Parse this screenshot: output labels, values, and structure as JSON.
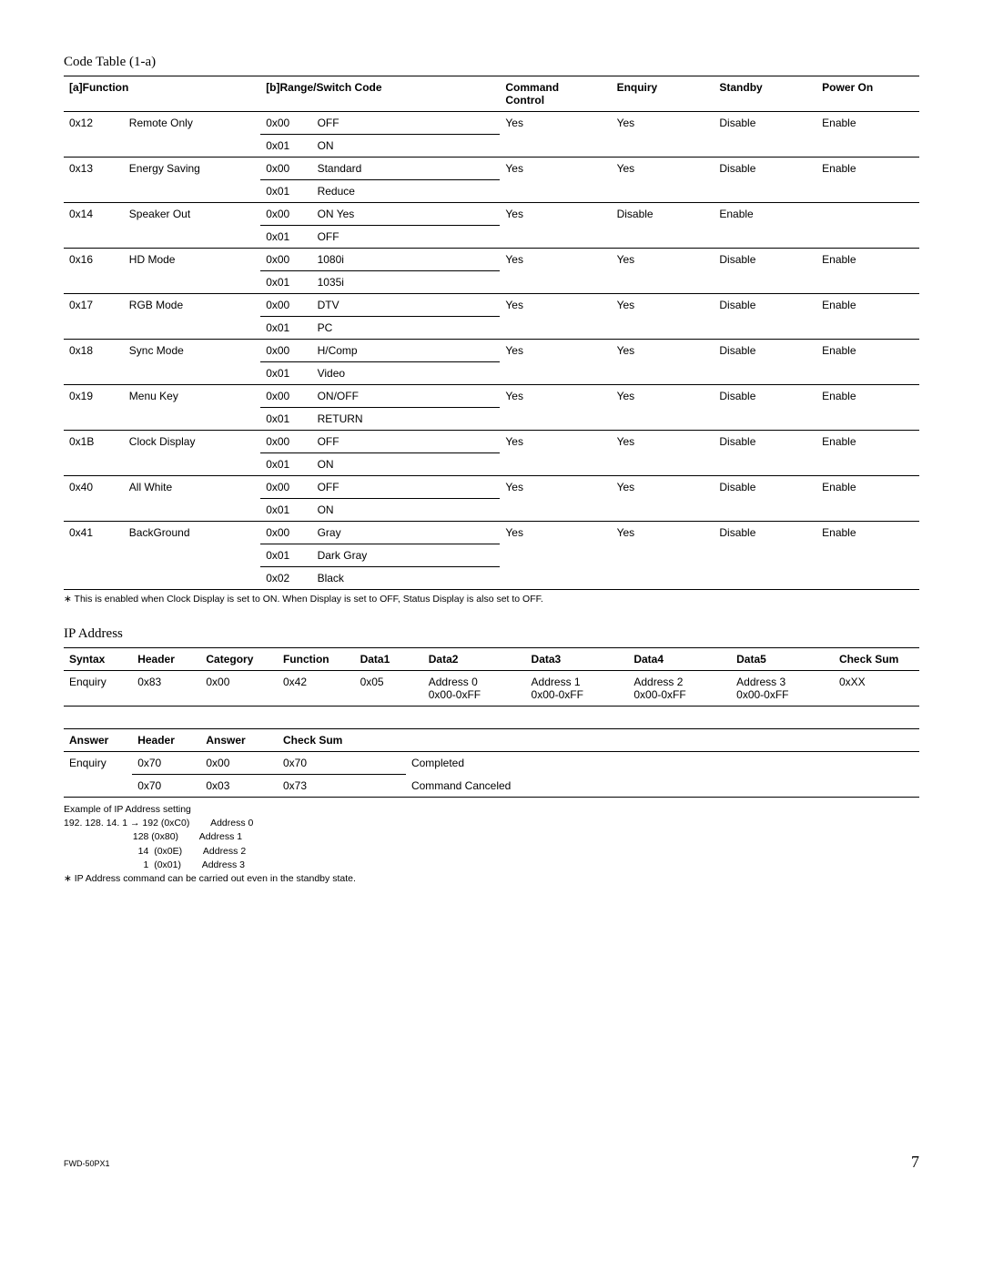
{
  "title1": "Code Table (1-a)",
  "table1": {
    "headers": {
      "a": "[a]Function",
      "b": "[b]Range/Switch Code",
      "cmd": "Command\nControl",
      "enq": "Enquiry",
      "stb": "Standby",
      "pwr": "Power On"
    },
    "groups": [
      {
        "code": "0x12",
        "name": "Remote Only",
        "rows": [
          [
            "0x00",
            "OFF"
          ],
          [
            "0x01",
            "ON"
          ]
        ],
        "cmd": "Yes",
        "enq": "Yes",
        "stb": "Disable",
        "pwr": "Enable"
      },
      {
        "code": "0x13",
        "name": "Energy Saving",
        "rows": [
          [
            "0x00",
            "Standard"
          ],
          [
            "0x01",
            "Reduce"
          ]
        ],
        "cmd": "Yes",
        "enq": "Yes",
        "stb": "Disable",
        "pwr": "Enable"
      },
      {
        "code": "0x14",
        "name": "Speaker Out",
        "rows": [
          [
            "0x00",
            "ON Yes"
          ],
          [
            "0x01",
            "OFF"
          ]
        ],
        "cmd": "Yes",
        "enq": "Disable",
        "stb": "Enable",
        "pwr": ""
      },
      {
        "code": "0x16",
        "name": "HD Mode",
        "rows": [
          [
            "0x00",
            "1080i"
          ],
          [
            "0x01",
            "1035i"
          ]
        ],
        "cmd": "Yes",
        "enq": "Yes",
        "stb": "Disable",
        "pwr": "Enable"
      },
      {
        "code": "0x17",
        "name": "RGB Mode",
        "rows": [
          [
            "0x00",
            "DTV"
          ],
          [
            "0x01",
            "PC"
          ]
        ],
        "cmd": "Yes",
        "enq": "Yes",
        "stb": "Disable",
        "pwr": "Enable"
      },
      {
        "code": "0x18",
        "name": "Sync Mode",
        "rows": [
          [
            "0x00",
            "H/Comp"
          ],
          [
            "0x01",
            "Video"
          ]
        ],
        "cmd": "Yes",
        "enq": "Yes",
        "stb": "Disable",
        "pwr": "Enable"
      },
      {
        "code": "0x19",
        "name": "Menu Key",
        "rows": [
          [
            "0x00",
            "ON/OFF"
          ],
          [
            "0x01",
            "RETURN"
          ]
        ],
        "cmd": "Yes",
        "enq": "Yes",
        "stb": "Disable",
        "pwr": "Enable"
      },
      {
        "code": "0x1B",
        "name": "Clock Display",
        "rows": [
          [
            "0x00",
            "OFF"
          ],
          [
            "0x01",
            "ON"
          ]
        ],
        "cmd": "Yes",
        "enq": "Yes",
        "stb": "Disable",
        "pwr": "Enable"
      },
      {
        "code": "0x40",
        "name": "All White",
        "rows": [
          [
            "0x00",
            "OFF"
          ],
          [
            "0x01",
            "ON"
          ]
        ],
        "cmd": "Yes",
        "enq": "Yes",
        "stb": "Disable",
        "pwr": "Enable"
      },
      {
        "code": "0x41",
        "name": "BackGround",
        "rows": [
          [
            "0x00",
            "Gray"
          ],
          [
            "0x01",
            "Dark Gray"
          ],
          [
            "0x02",
            "Black"
          ]
        ],
        "cmd": "Yes",
        "enq": "Yes",
        "stb": "Disable",
        "pwr": "Enable"
      }
    ]
  },
  "note1": "∗ This is enabled when Clock Display is set to ON. When Display is set to OFF, Status Display is also set to OFF.",
  "title2": "IP Address",
  "table2": {
    "headers": [
      "Syntax",
      "Header",
      "Category",
      "Function",
      "Data1",
      "Data2",
      "Data3",
      "Data4",
      "Data5",
      "Check Sum"
    ],
    "row": [
      "Enquiry",
      "0x83",
      "0x00",
      "0x42",
      "0x05",
      "Address 0\n0x00-0xFF",
      "Address 1\n0x00-0xFF",
      "Address 2\n0x00-0xFF",
      "Address 3\n0x00-0xFF",
      "0xXX"
    ]
  },
  "table3": {
    "headers": [
      "Answer",
      "Header",
      "Answer",
      "Check Sum",
      ""
    ],
    "rows": [
      [
        "Enquiry",
        "0x70",
        "0x00",
        "0x70",
        "Completed"
      ],
      [
        "",
        "0x70",
        "0x03",
        "0x73",
        "Command Canceled"
      ]
    ]
  },
  "example": {
    "title": "Example of IP Address setting",
    "lines": [
      "192. 128. 14. 1 → 192 (0xC0)        Address 0",
      "                          128 (0x80)        Address 1",
      "                            14  (0x0E)        Address 2",
      "                              1  (0x01)        Address 3"
    ],
    "note": "∗ IP Address command can be carried out even in the standby state."
  },
  "footer": {
    "model": "FWD-50PX1",
    "page": "7"
  }
}
